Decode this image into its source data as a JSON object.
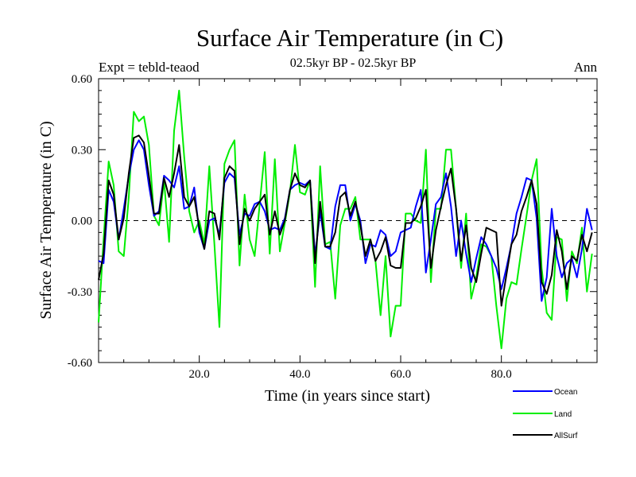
{
  "chart_data": {
    "type": "line",
    "title": "Surface Air Temperature (in C)",
    "left_label": "Expt = tebld-teaod",
    "center_label": "02.5kyr BP - 02.5kyr BP",
    "right_label": "Ann",
    "xlabel": "Time (in years since start)",
    "ylabel": "Surface Air Temperature (in C)",
    "xlim": [
      0,
      99
    ],
    "ylim": [
      -0.6,
      0.6
    ],
    "x_ticks": [
      {
        "value": 20,
        "label": "20.0"
      },
      {
        "value": 40,
        "label": "40.0"
      },
      {
        "value": 60,
        "label": "60.0"
      },
      {
        "value": 80,
        "label": "80.0"
      }
    ],
    "y_ticks": [
      {
        "value": 0.6,
        "label": "0.60"
      },
      {
        "value": 0.3,
        "label": "0.30"
      },
      {
        "value": 0.0,
        "label": "0.00"
      },
      {
        "value": -0.3,
        "label": "-0.30"
      },
      {
        "value": -0.6,
        "label": "-0.60"
      }
    ],
    "zero_line": true,
    "x_start": 0,
    "series": [
      {
        "name": "Ocean",
        "color": "#0000ff",
        "values": [
          -0.17,
          -0.18,
          0.13,
          0.08,
          -0.08,
          0.05,
          0.19,
          0.3,
          0.34,
          0.3,
          0.15,
          0.02,
          0.04,
          0.19,
          0.17,
          0.14,
          0.23,
          0.05,
          0.06,
          0.14,
          -0.05,
          -0.12,
          0.0,
          0.01,
          -0.06,
          0.16,
          0.2,
          0.18,
          -0.06,
          0.03,
          0.02,
          0.07,
          0.08,
          0.04,
          -0.04,
          -0.03,
          -0.04,
          0.01,
          0.13,
          0.15,
          0.16,
          0.15,
          0.17,
          -0.15,
          0.04,
          -0.11,
          -0.12,
          0.06,
          0.15,
          0.15,
          0.0,
          0.07,
          0.0,
          -0.18,
          -0.1,
          -0.11,
          -0.04,
          -0.06,
          -0.15,
          -0.13,
          -0.05,
          -0.04,
          -0.03,
          0.06,
          0.13,
          -0.22,
          -0.08,
          0.07,
          0.1,
          0.2,
          0.06,
          -0.15,
          0.0,
          -0.14,
          -0.26,
          -0.16,
          -0.07,
          -0.1,
          -0.15,
          -0.2,
          -0.29,
          -0.2,
          -0.1,
          0.03,
          0.1,
          0.18,
          0.17,
          0.01,
          -0.34,
          -0.24,
          0.05,
          -0.15,
          -0.24,
          -0.18,
          -0.16,
          -0.24,
          -0.12,
          0.05,
          -0.04
        ]
      },
      {
        "name": "Land",
        "color": "#00ee00",
        "values": [
          -0.43,
          -0.08,
          0.25,
          0.15,
          -0.13,
          -0.15,
          0.1,
          0.46,
          0.42,
          0.44,
          0.32,
          0.02,
          -0.02,
          0.17,
          -0.09,
          0.38,
          0.55,
          0.27,
          0.04,
          -0.05,
          0.0,
          -0.1,
          0.23,
          -0.1,
          -0.45,
          0.24,
          0.3,
          0.34,
          -0.19,
          0.11,
          -0.08,
          -0.15,
          0.07,
          0.29,
          -0.14,
          0.26,
          -0.13,
          -0.01,
          0.12,
          0.32,
          0.12,
          0.11,
          0.17,
          -0.28,
          0.23,
          -0.1,
          -0.09,
          -0.33,
          -0.02,
          0.05,
          0.05,
          0.1,
          -0.08,
          -0.08,
          -0.08,
          -0.17,
          -0.4,
          -0.15,
          -0.49,
          -0.36,
          -0.36,
          0.03,
          0.03,
          0.0,
          -0.01,
          0.3,
          -0.26,
          0.05,
          0.05,
          0.3,
          0.3,
          0.05,
          -0.2,
          0.03,
          -0.33,
          -0.24,
          -0.1,
          -0.11,
          -0.15,
          -0.36,
          -0.54,
          -0.33,
          -0.26,
          -0.27,
          -0.12,
          0.02,
          0.17,
          0.26,
          -0.2,
          -0.39,
          -0.42,
          -0.07,
          -0.08,
          -0.34,
          -0.13,
          -0.18,
          -0.03,
          -0.3,
          -0.14
        ]
      },
      {
        "name": "AllSurf",
        "color": "#000000",
        "values": [
          -0.25,
          -0.14,
          0.17,
          0.11,
          -0.08,
          0.01,
          0.2,
          0.35,
          0.36,
          0.33,
          0.19,
          0.03,
          0.03,
          0.18,
          0.1,
          0.2,
          0.32,
          0.1,
          0.06,
          0.1,
          -0.03,
          -0.12,
          0.04,
          0.03,
          -0.08,
          0.18,
          0.23,
          0.21,
          -0.1,
          0.05,
          0.0,
          0.05,
          0.08,
          0.11,
          -0.06,
          0.04,
          -0.06,
          0.0,
          0.13,
          0.2,
          0.15,
          0.14,
          0.17,
          -0.18,
          0.08,
          -0.11,
          -0.11,
          -0.05,
          0.1,
          0.12,
          0.02,
          0.08,
          -0.02,
          -0.15,
          -0.08,
          -0.17,
          -0.13,
          -0.07,
          -0.19,
          -0.2,
          -0.2,
          -0.01,
          -0.01,
          0.01,
          0.06,
          0.13,
          -0.2,
          -0.04,
          0.06,
          0.15,
          0.22,
          0.05,
          -0.17,
          -0.02,
          -0.2,
          -0.26,
          -0.14,
          -0.03,
          -0.04,
          -0.05,
          -0.36,
          -0.23,
          -0.1,
          -0.06,
          0.04,
          0.1,
          0.17,
          0.07,
          -0.26,
          -0.31,
          -0.23,
          -0.04,
          -0.13,
          -0.29,
          -0.15,
          -0.17,
          -0.06,
          -0.13,
          -0.05
        ]
      }
    ]
  }
}
